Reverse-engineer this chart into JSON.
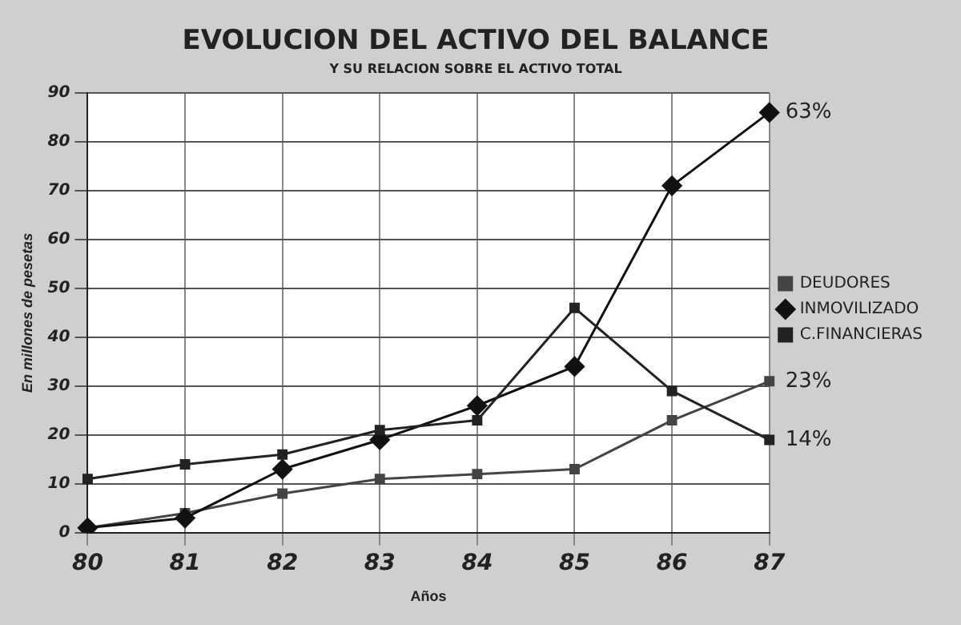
{
  "chart_data": {
    "type": "line",
    "title": "EVOLUCION DEL ACTIVO DEL BALANCE",
    "subtitle": "Y SU RELACION SOBRE EL ACTIVO TOTAL",
    "xlabel": "Años",
    "ylabel": "En millones de pesetas",
    "categories": [
      "80",
      "81",
      "82",
      "83",
      "84",
      "85",
      "86",
      "87"
    ],
    "series": [
      {
        "name": "DEUDORES",
        "color": "#444444",
        "marker": "square",
        "values": [
          1,
          4,
          8,
          11,
          12,
          13,
          23,
          31
        ]
      },
      {
        "name": "INMOVILIZADO",
        "color": "#111111",
        "marker": "diamond",
        "values": [
          1,
          3,
          13,
          19,
          26,
          34,
          71,
          86
        ]
      },
      {
        "name": "C.FINANCIERAS",
        "color": "#222222",
        "marker": "square",
        "values": [
          11,
          14,
          16,
          21,
          23,
          46,
          29,
          19
        ]
      }
    ],
    "ylim": [
      0,
      90
    ],
    "yticks": [
      0,
      10,
      20,
      30,
      40,
      50,
      60,
      70,
      80,
      90
    ],
    "grid": true,
    "legend": "right",
    "annotations": [
      {
        "text": "63%",
        "x": "87",
        "y": 86
      },
      {
        "text": "23%",
        "x": "87",
        "y": 31
      },
      {
        "text": "14%",
        "x": "87",
        "y": 19
      }
    ]
  }
}
